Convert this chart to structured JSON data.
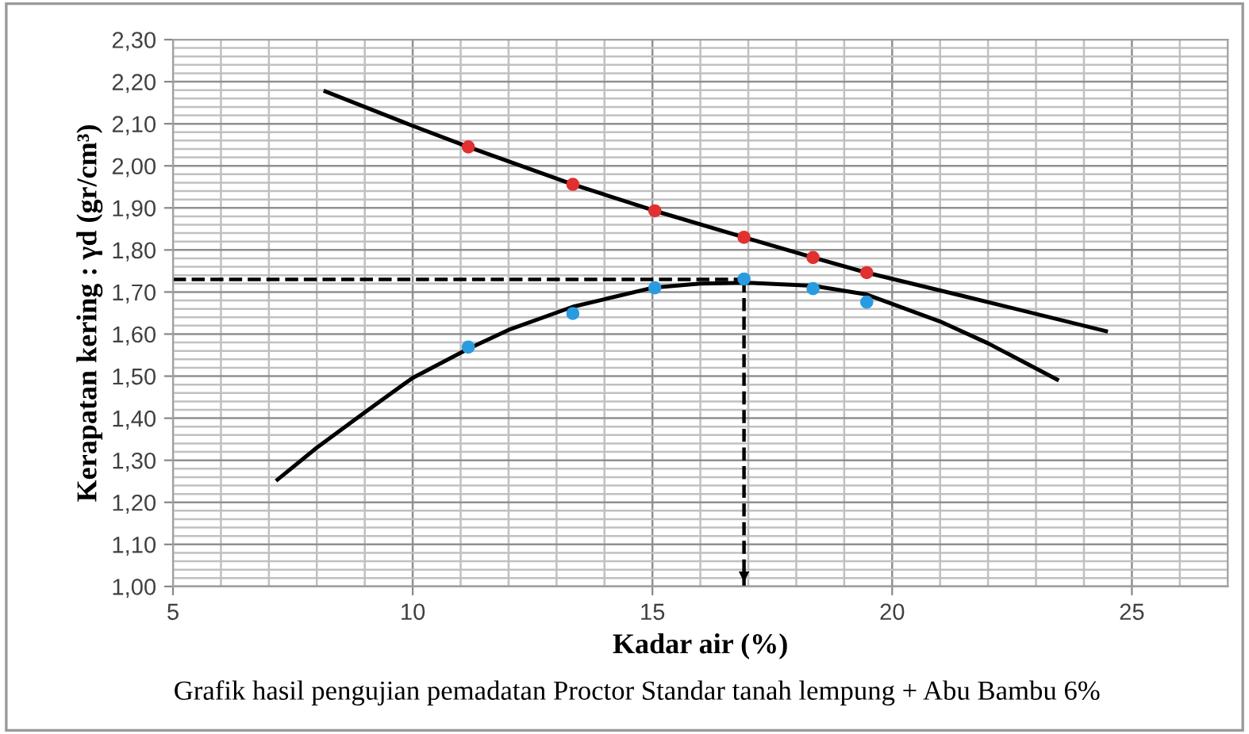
{
  "chart_data": {
    "type": "scatter",
    "xlabel": "Kadar air (%)",
    "ylabel": "Kerapatan kering : γd (gr/cm³)",
    "annotations": [
      "Grafik hasil pengujian pemadatan Proctor Standar tanah lempung + Abu Bambu 6%"
    ],
    "xlim": [
      5,
      27
    ],
    "xticks": [
      5,
      {
        "value": 6,
        "label": null
      },
      {
        "value": 7,
        "label": null
      },
      {
        "value": 8,
        "label": null
      },
      {
        "value": 9,
        "label": null
      },
      10,
      {
        "value": 11,
        "label": null
      },
      {
        "value": 12,
        "label": null
      },
      {
        "value": 13,
        "label": null
      },
      {
        "value": 14,
        "label": null
      },
      15,
      {
        "value": 16,
        "label": null
      },
      {
        "value": 17,
        "label": null
      },
      {
        "value": 18,
        "label": null
      },
      {
        "value": 19,
        "label": null
      },
      20,
      {
        "value": 21,
        "label": null
      },
      {
        "value": 22,
        "label": null
      },
      {
        "value": 23,
        "label": null
      },
      {
        "value": 24,
        "label": null
      },
      25,
      {
        "value": 26,
        "label": null
      }
    ],
    "ylim": [
      1.0,
      2.3
    ],
    "yticks": [
      {
        "value": 1.0,
        "label": "1,00"
      },
      {
        "value": 1.02,
        "label": null
      },
      {
        "value": 1.04,
        "label": null
      },
      {
        "value": 1.06,
        "label": null
      },
      {
        "value": 1.08,
        "label": null
      },
      {
        "value": 1.1,
        "label": "1,10"
      },
      {
        "value": 1.12,
        "label": null
      },
      {
        "value": 1.14,
        "label": null
      },
      {
        "value": 1.16,
        "label": null
      },
      {
        "value": 1.18,
        "label": null
      },
      {
        "value": 1.2,
        "label": "1,20"
      },
      {
        "value": 1.22,
        "label": null
      },
      {
        "value": 1.24,
        "label": null
      },
      {
        "value": 1.26,
        "label": null
      },
      {
        "value": 1.28,
        "label": null
      },
      {
        "value": 1.3,
        "label": "1,30"
      },
      {
        "value": 1.32,
        "label": null
      },
      {
        "value": 1.34,
        "label": null
      },
      {
        "value": 1.36,
        "label": null
      },
      {
        "value": 1.38,
        "label": null
      },
      {
        "value": 1.4,
        "label": "1,40"
      },
      {
        "value": 1.42,
        "label": null
      },
      {
        "value": 1.44,
        "label": null
      },
      {
        "value": 1.46,
        "label": null
      },
      {
        "value": 1.48,
        "label": null
      },
      {
        "value": 1.5,
        "label": "1,50"
      },
      {
        "value": 1.52,
        "label": null
      },
      {
        "value": 1.54,
        "label": null
      },
      {
        "value": 1.56,
        "label": null
      },
      {
        "value": 1.58,
        "label": null
      },
      {
        "value": 1.6,
        "label": "1,60"
      },
      {
        "value": 1.62,
        "label": null
      },
      {
        "value": 1.64,
        "label": null
      },
      {
        "value": 1.66,
        "label": null
      },
      {
        "value": 1.68,
        "label": null
      },
      {
        "value": 1.7,
        "label": "1,70"
      },
      {
        "value": 1.72,
        "label": null
      },
      {
        "value": 1.74,
        "label": null
      },
      {
        "value": 1.76,
        "label": null
      },
      {
        "value": 1.78,
        "label": null
      },
      {
        "value": 1.8,
        "label": "1,80"
      },
      {
        "value": 1.82,
        "label": null
      },
      {
        "value": 1.84,
        "label": null
      },
      {
        "value": 1.86,
        "label": null
      },
      {
        "value": 1.88,
        "label": null
      },
      {
        "value": 1.9,
        "label": "1,90"
      },
      {
        "value": 1.92,
        "label": null
      },
      {
        "value": 1.94,
        "label": null
      },
      {
        "value": 1.96,
        "label": null
      },
      {
        "value": 1.98,
        "label": null
      },
      {
        "value": 2.0,
        "label": "2,00"
      },
      {
        "value": 2.02,
        "label": null
      },
      {
        "value": 2.04,
        "label": null
      },
      {
        "value": 2.06,
        "label": null
      },
      {
        "value": 2.08,
        "label": null
      },
      {
        "value": 2.1,
        "label": "2,10"
      },
      {
        "value": 2.12,
        "label": null
      },
      {
        "value": 2.14,
        "label": null
      },
      {
        "value": 2.16,
        "label": null
      },
      {
        "value": 2.18,
        "label": null
      },
      {
        "value": 2.2,
        "label": "2,20"
      },
      {
        "value": 2.22,
        "label": null
      },
      {
        "value": 2.24,
        "label": null
      },
      {
        "value": 2.26,
        "label": null
      },
      {
        "value": 2.28,
        "label": null
      },
      {
        "value": 2.3,
        "label": "2,30"
      }
    ],
    "grid": true,
    "marker": "circle",
    "legend": false,
    "series": [
      {
        "type": "line",
        "color": "#000000",
        "marker": "none",
        "x": [
          8.18,
          10,
          11.16,
          13.34,
          15.05,
          16.91,
          18.35,
          19.47,
          21.5,
          24.46
        ],
        "values": [
          2.177,
          2.095,
          2.045,
          1.956,
          1.893,
          1.83,
          1.782,
          1.746,
          1.69,
          1.607
        ]
      },
      {
        "type": "line",
        "color": "#000000",
        "marker": "none",
        "x": [
          7.18,
          8,
          9,
          10,
          11.16,
          12,
          13.34,
          15,
          16,
          17,
          18.35,
          19.47,
          21,
          22,
          23.44
        ],
        "values": [
          1.254,
          1.33,
          1.414,
          1.496,
          1.565,
          1.61,
          1.665,
          1.71,
          1.72,
          1.722,
          1.715,
          1.694,
          1.63,
          1.578,
          1.492
        ]
      },
      {
        "color": "#e03030",
        "x": [
          11.16,
          13.34,
          15.05,
          16.91,
          18.35,
          19.47
        ],
        "values": [
          2.045,
          1.956,
          1.893,
          1.83,
          1.782,
          1.746
        ]
      },
      {
        "color": "#2b9be0",
        "x": [
          11.16,
          13.34,
          15.05,
          16.91,
          18.35,
          19.47
        ],
        "values": [
          1.569,
          1.649,
          1.71,
          1.731,
          1.708,
          1.676
        ]
      }
    ],
    "ref_lines": [
      {
        "axis": "y",
        "value": 1.73,
        "label": null,
        "color": "#000000",
        "line_style": "dashed"
      },
      {
        "axis": "x",
        "value": 16.91,
        "label": null,
        "color": "#000000",
        "line_style": "dashed"
      }
    ]
  }
}
